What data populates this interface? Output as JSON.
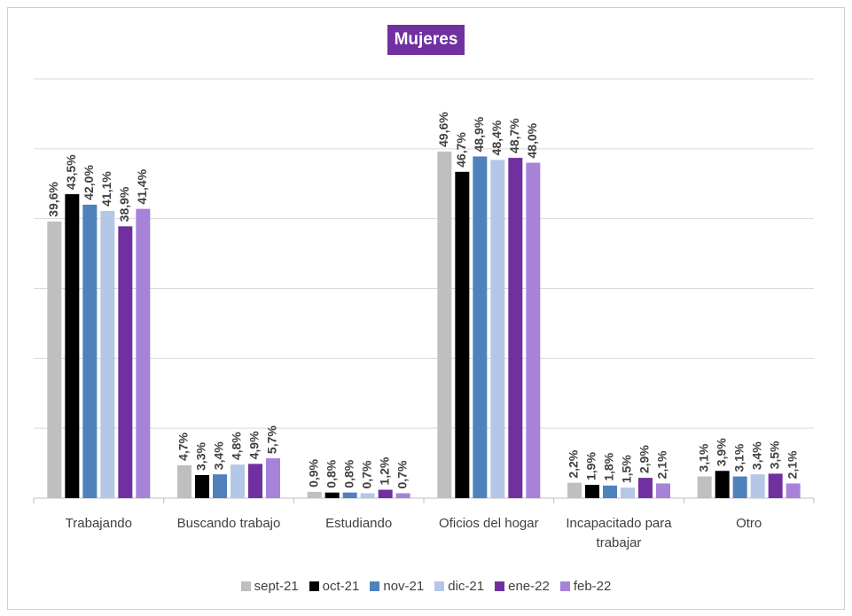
{
  "chart_data": {
    "type": "bar",
    "title": "Mujeres",
    "categories": [
      "Trabajando",
      "Buscando trabajo",
      "Estudiando",
      "Oficios del hogar",
      "Incapacitado para trabajar",
      "Otro"
    ],
    "series": [
      {
        "name": "sept-21",
        "color": "#bfbfbf",
        "values": [
          39.6,
          4.7,
          0.9,
          49.6,
          2.2,
          3.1
        ],
        "value_labels": [
          "39,6%",
          "4,7%",
          "0,9%",
          "49,6%",
          "2,2%",
          "3,1%"
        ]
      },
      {
        "name": "oct-21",
        "color": "#000000",
        "values": [
          43.5,
          3.3,
          0.8,
          46.7,
          1.9,
          3.9
        ],
        "value_labels": [
          "43,5%",
          "3,3%",
          "0,8%",
          "46,7%",
          "1,9%",
          "3,9%"
        ]
      },
      {
        "name": "nov-21",
        "color": "#4f81bd",
        "values": [
          42.0,
          3.4,
          0.8,
          48.9,
          1.8,
          3.1
        ],
        "value_labels": [
          "42,0%",
          "3,4%",
          "0,8%",
          "48,9%",
          "1,8%",
          "3,1%"
        ]
      },
      {
        "name": "dic-21",
        "color": "#b4c7e7",
        "values": [
          41.1,
          4.8,
          0.7,
          48.4,
          1.5,
          3.4
        ],
        "value_labels": [
          "41,1%",
          "4,8%",
          "0,7%",
          "48,4%",
          "1,5%",
          "3,4%"
        ]
      },
      {
        "name": "ene-22",
        "color": "#7030a0",
        "values": [
          38.9,
          4.9,
          1.2,
          48.7,
          2.9,
          3.5
        ],
        "value_labels": [
          "38,9%",
          "4,9%",
          "1,2%",
          "48,7%",
          "2,9%",
          "3,5%"
        ]
      },
      {
        "name": "feb-22",
        "color": "#a683d8",
        "values": [
          41.4,
          5.7,
          0.7,
          48.0,
          2.1,
          2.1
        ],
        "value_labels": [
          "41,4%",
          "5,7%",
          "0,7%",
          "48,0%",
          "2,1%",
          "2,1%"
        ]
      }
    ],
    "ylim": [
      0,
      60
    ],
    "yticks": [
      0,
      10,
      20,
      30,
      40,
      50,
      60
    ],
    "grid": true,
    "legend": "bottom"
  }
}
